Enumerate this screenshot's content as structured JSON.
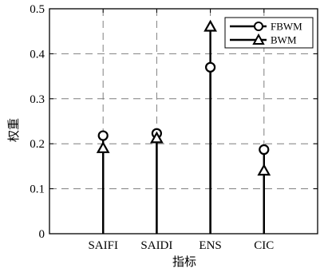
{
  "chart_data": {
    "type": "stem",
    "title": "",
    "xlabel": "指标",
    "ylabel": "权重",
    "categories": [
      "SAIFI",
      "SAIDI",
      "ENS",
      "CIC"
    ],
    "ylim": [
      0,
      0.5
    ],
    "yticks": [
      "0",
      "0.1",
      "0.2",
      "0.3",
      "0.4",
      "0.5"
    ],
    "grid": true,
    "legend_position": "top-right",
    "series": [
      {
        "name": "FBWM",
        "marker": "circle",
        "values": [
          0.218,
          0.223,
          0.37,
          0.187
        ]
      },
      {
        "name": "BWM",
        "marker": "triangle",
        "values": [
          0.19,
          0.212,
          0.46,
          0.14
        ]
      }
    ],
    "colors": {
      "line": "#000000",
      "grid": "#7f7f7f",
      "background": "#ffffff"
    }
  }
}
